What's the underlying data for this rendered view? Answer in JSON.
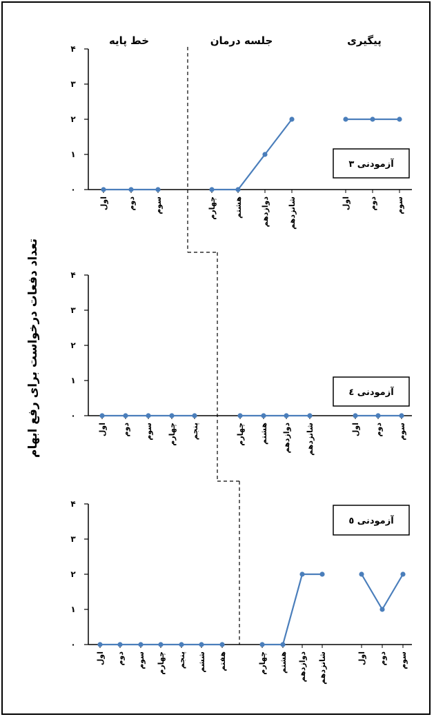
{
  "chart_data": {
    "type": "line",
    "y_axis_title": "تعداد دفعات درخواست برای رفع ابهام",
    "phases": [
      "خط پایه",
      "جلسه درمان",
      "پیگیری"
    ],
    "line_color": "#4a7ebb",
    "yticks": [
      "۰",
      "۱",
      "۲",
      "۳",
      "۴"
    ],
    "ylim": [
      0,
      4
    ],
    "panels": [
      {
        "name": "آزمودنی ۳",
        "baseline": {
          "categories": [
            "اول",
            "دوم",
            "سوم"
          ],
          "values": [
            0,
            0,
            0
          ]
        },
        "treatment": {
          "categories": [
            "چهارم",
            "هشتم",
            "دوازدهم",
            "شانزدهم"
          ],
          "values": [
            0,
            0,
            1,
            2
          ]
        },
        "followup": {
          "categories": [
            "اول",
            "دوم",
            "سوم"
          ],
          "values": [
            2,
            2,
            2
          ]
        }
      },
      {
        "name": "آزمودنی ٤",
        "baseline": {
          "categories": [
            "اول",
            "دوم",
            "سوم",
            "چهارم",
            "پنجم"
          ],
          "values": [
            0,
            0,
            0,
            0,
            0
          ]
        },
        "treatment": {
          "categories": [
            "چهارم",
            "هشتم",
            "دوازدهم",
            "شانزدهم"
          ],
          "values": [
            0,
            0,
            0,
            0
          ]
        },
        "followup": {
          "categories": [
            "اول",
            "دوم",
            "سوم"
          ],
          "values": [
            0,
            0,
            0
          ]
        }
      },
      {
        "name": "آزمودنی ٥",
        "baseline": {
          "categories": [
            "اول",
            "دوم",
            "سوم",
            "چهارم",
            "پنجم",
            "ششم",
            "هفتم"
          ],
          "values": [
            0,
            0,
            0,
            0,
            0,
            0,
            0
          ]
        },
        "treatment": {
          "categories": [
            "چهارم",
            "هشتم",
            "دوازدهم",
            "شانزدهم"
          ],
          "values": [
            0,
            0,
            2,
            2
          ]
        },
        "followup": {
          "categories": [
            "اول",
            "دوم",
            "سوم"
          ],
          "values": [
            2,
            1,
            2
          ]
        }
      }
    ]
  }
}
